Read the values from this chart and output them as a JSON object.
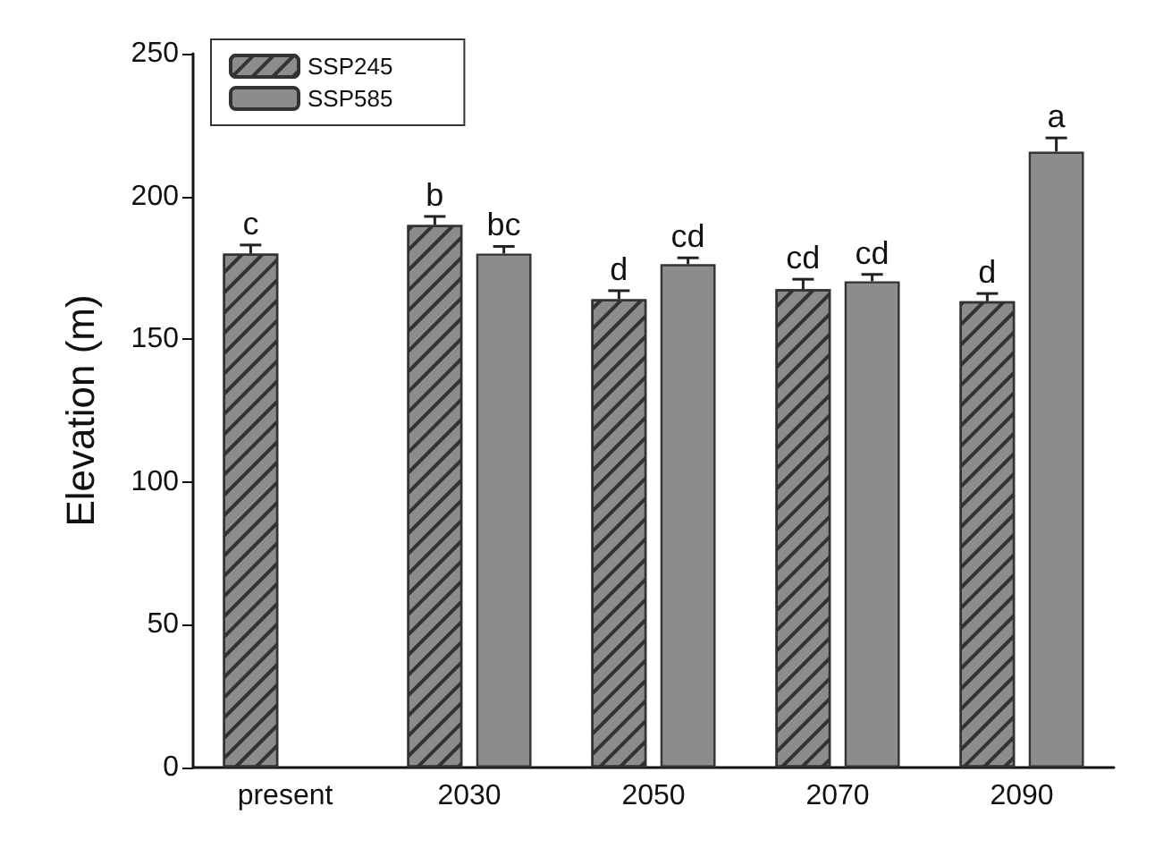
{
  "chart_data": {
    "type": "bar",
    "ylabel": "Elevation (m)",
    "categories": [
      "present",
      "2030",
      "2050",
      "2070",
      "2090"
    ],
    "series": [
      {
        "name": "SSP245",
        "color": "#8c8c8c",
        "values": [
          180,
          190,
          164,
          167.5,
          163.3
        ],
        "errors": [
          3,
          3,
          3,
          3.5,
          2.7
        ],
        "value_labels": [
          "c",
          "b",
          "d",
          "cd",
          "d"
        ]
      },
      {
        "name": "SSP585",
        "color": "#8c8c8c",
        "values": [
          null,
          180,
          176.3,
          170.3,
          215.7
        ],
        "errors": [
          null,
          2.5,
          2.2,
          2.4,
          4.8
        ],
        "value_labels": [
          null,
          "bc",
          "cd",
          "cd",
          "a"
        ]
      }
    ],
    "ylim": [
      0,
      250
    ],
    "yticks": [
      0,
      50,
      100,
      150,
      200,
      250
    ],
    "grid": false,
    "legend": "top left"
  }
}
